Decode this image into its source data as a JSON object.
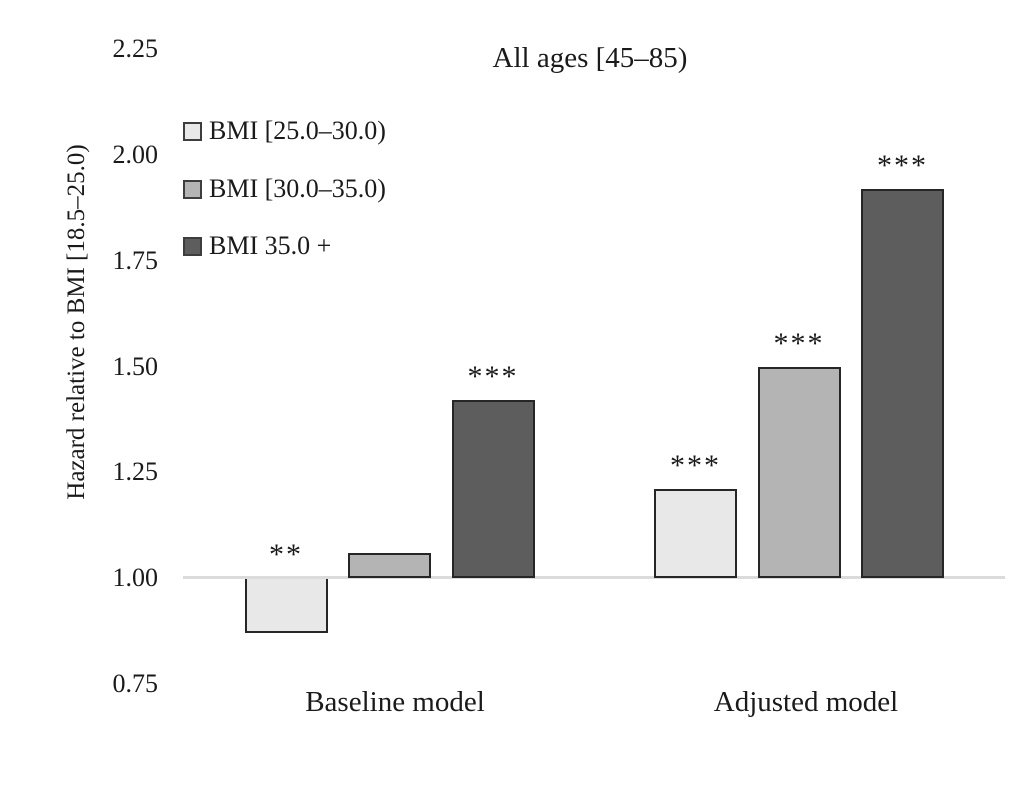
{
  "chart_data": {
    "type": "bar",
    "title": "All ages [45–85)",
    "ylabel": "Hazard relative to BMI [18.5–25.0)",
    "xlabel": "",
    "categories": [
      "Baseline model",
      "Adjusted model"
    ],
    "series": [
      {
        "name": "BMI [25.0–30.0)",
        "color": "#e8e8e8",
        "values": [
          0.87,
          1.21
        ],
        "significance": [
          "**",
          "***"
        ]
      },
      {
        "name": "BMI [30.0–35.0)",
        "color": "#b4b4b4",
        "values": [
          1.06,
          1.5
        ],
        "significance": [
          "",
          "***"
        ]
      },
      {
        "name": "BMI 35.0 +",
        "color": "#5d5d5d",
        "values": [
          1.42,
          1.92
        ],
        "significance": [
          "***",
          "***"
        ]
      }
    ],
    "y_ticks": [
      "2.25",
      "2.00",
      "1.75",
      "1.50",
      "1.25",
      "1.00",
      "0.75"
    ],
    "ylim": [
      0.75,
      2.25
    ],
    "reference_line_value": 1.0,
    "grid": false,
    "legend_position": "upper-left",
    "bar_border_color": "#262626",
    "reference_line_color": "#dbdbdd",
    "text_color": "#1a1a1a",
    "background_color": "#ffffff"
  }
}
